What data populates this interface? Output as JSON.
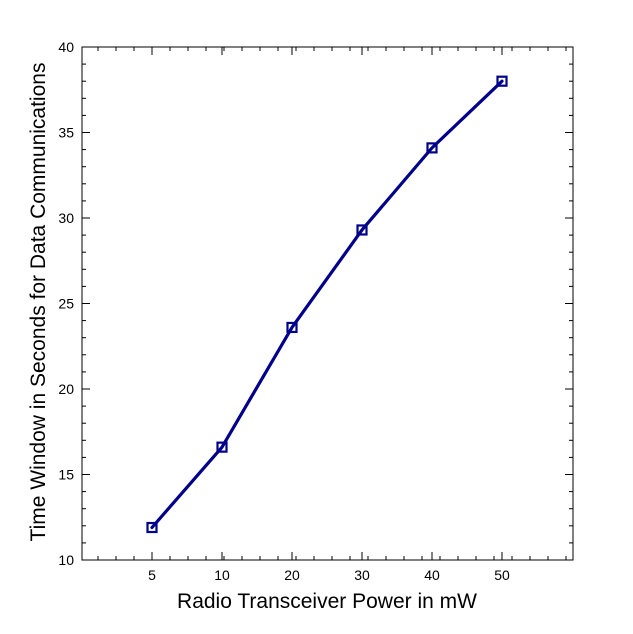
{
  "chart_data": {
    "type": "line",
    "title": "",
    "xlabel": "Radio Transceiver Power in mW",
    "ylabel": "Time Window in Seconds for Data Communications",
    "x_categories": [
      "5",
      "10",
      "20",
      "30",
      "40",
      "50"
    ],
    "ylim": [
      10,
      40
    ],
    "y_ticks": [
      10,
      15,
      20,
      25,
      30,
      35,
      40
    ],
    "y_tick_labels": [
      "10",
      "15",
      "20",
      "25",
      "30",
      "35",
      "40"
    ],
    "grid": false,
    "legend": "none",
    "series": [
      {
        "values": [
          11.9,
          16.6,
          23.6,
          29.3,
          34.1,
          38.0
        ],
        "color": "#00008B",
        "marker": "square"
      }
    ]
  }
}
